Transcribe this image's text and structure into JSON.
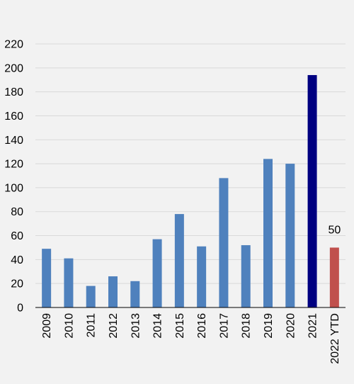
{
  "chart_data": {
    "type": "bar",
    "title": "",
    "xlabel": "",
    "ylabel": "",
    "ylim": [
      0,
      220
    ],
    "yticks": [
      0,
      20,
      40,
      60,
      80,
      100,
      120,
      140,
      160,
      180,
      200,
      220
    ],
    "grid": true,
    "legend": "none",
    "categories": [
      "2009",
      "2010",
      "2011",
      "2012",
      "2013",
      "2014",
      "2015",
      "2016",
      "2017",
      "2018",
      "2019",
      "2020",
      "2021",
      "2022 YTD"
    ],
    "values": [
      49,
      41,
      18,
      26,
      22,
      57,
      78,
      51,
      108,
      52,
      124,
      120,
      194,
      50
    ],
    "bar_colors": [
      "#4f81bd",
      "#4f81bd",
      "#4f81bd",
      "#4f81bd",
      "#4f81bd",
      "#4f81bd",
      "#4f81bd",
      "#4f81bd",
      "#4f81bd",
      "#4f81bd",
      "#4f81bd",
      "#4f81bd",
      "#000080",
      "#c0504d"
    ],
    "data_labels": [
      {
        "category": "2022 YTD",
        "text": "50"
      }
    ]
  },
  "colors": {
    "background": "#f2f2f2",
    "gridline": "#d9d9d9",
    "axis": "#000000"
  }
}
